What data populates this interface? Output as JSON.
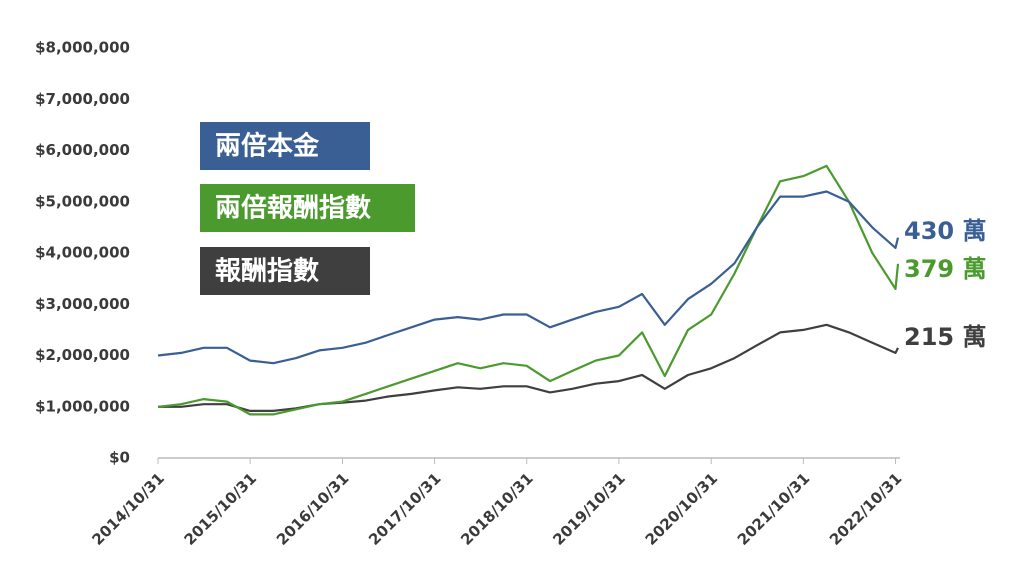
{
  "chart_data": {
    "type": "line",
    "x": [
      "2014/10/31",
      "2015/01/31",
      "2015/04/30",
      "2015/07/31",
      "2015/10/31",
      "2016/01/31",
      "2016/04/30",
      "2016/07/31",
      "2016/10/31",
      "2017/01/31",
      "2017/04/30",
      "2017/07/31",
      "2017/10/31",
      "2018/01/31",
      "2018/04/30",
      "2018/07/31",
      "2018/10/31",
      "2019/01/31",
      "2019/04/30",
      "2019/07/31",
      "2019/10/31",
      "2020/01/31",
      "2020/04/30",
      "2020/07/31",
      "2020/10/31",
      "2021/01/31",
      "2021/04/30",
      "2021/07/31",
      "2021/10/31",
      "2022/01/31",
      "2022/04/30",
      "2022/07/31",
      "2022/10/31",
      "2022/11/10"
    ],
    "series": [
      {
        "name": "兩倍本金",
        "color": "#3a5f94",
        "values": [
          2000000,
          2050000,
          2150000,
          2150000,
          1900000,
          1850000,
          1950000,
          2100000,
          2150000,
          2250000,
          2400000,
          2550000,
          2700000,
          2750000,
          2700000,
          2800000,
          2800000,
          2550000,
          2700000,
          2850000,
          2950000,
          3200000,
          2600000,
          3100000,
          3400000,
          3800000,
          4500000,
          5100000,
          5100000,
          5200000,
          5000000,
          4500000,
          4100000,
          4300000
        ]
      },
      {
        "name": "兩倍報酬指數",
        "color": "#4b9a2e",
        "values": [
          1000000,
          1050000,
          1150000,
          1100000,
          850000,
          850000,
          950000,
          1050000,
          1100000,
          1250000,
          1400000,
          1550000,
          1700000,
          1850000,
          1750000,
          1850000,
          1800000,
          1500000,
          1700000,
          1900000,
          2000000,
          2450000,
          1600000,
          2500000,
          2800000,
          3600000,
          4500000,
          5400000,
          5500000,
          5700000,
          5000000,
          4000000,
          3300000,
          3790000
        ]
      },
      {
        "name": "報酬指數",
        "color": "#3f3f3f",
        "values": [
          1000000,
          1000000,
          1050000,
          1050000,
          920000,
          920000,
          970000,
          1050000,
          1080000,
          1120000,
          1200000,
          1250000,
          1320000,
          1380000,
          1350000,
          1400000,
          1400000,
          1280000,
          1350000,
          1450000,
          1500000,
          1620000,
          1350000,
          1620000,
          1750000,
          1950000,
          2200000,
          2450000,
          2500000,
          2600000,
          2450000,
          2250000,
          2050000,
          2150000
        ]
      }
    ],
    "annotations": [
      "430 萬",
      "379 萬",
      "215 萬"
    ],
    "xlim": [
      "2014/10/31",
      "2022/11/10"
    ],
    "xticks": [
      "2014/10/31",
      "2015/10/31",
      "2016/10/31",
      "2017/10/31",
      "2018/10/31",
      "2019/10/31",
      "2020/10/31",
      "2021/10/31",
      "2022/10/31"
    ],
    "ylim": [
      0,
      8000000
    ],
    "yticks": [
      {
        "value": 0,
        "label": "$0"
      },
      {
        "value": 1000000,
        "label": "$1,000,000"
      },
      {
        "value": 2000000,
        "label": "$2,000,000"
      },
      {
        "value": 3000000,
        "label": "$3,000,000"
      },
      {
        "value": 4000000,
        "label": "$4,000,000"
      },
      {
        "value": 5000000,
        "label": "$5,000,000"
      },
      {
        "value": 6000000,
        "label": "$6,000,000"
      },
      {
        "value": 7000000,
        "label": "$7,000,000"
      },
      {
        "value": 8000000,
        "label": "$8,000,000"
      }
    ],
    "grid": false
  }
}
